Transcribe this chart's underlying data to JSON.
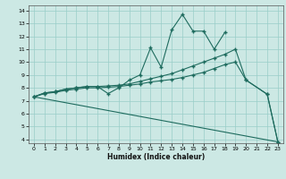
{
  "line1_x": [
    0,
    1,
    2,
    3,
    4,
    5,
    6,
    7,
    8,
    9,
    10,
    11,
    12,
    13,
    14,
    15,
    16,
    17,
    18
  ],
  "line1_y": [
    7.3,
    7.6,
    7.7,
    7.9,
    8.0,
    8.1,
    8.1,
    7.55,
    8.0,
    8.6,
    9.0,
    11.1,
    9.6,
    12.5,
    13.7,
    12.4,
    12.4,
    11.0,
    12.3
  ],
  "line2_x": [
    0,
    1,
    2,
    3,
    4,
    5,
    6,
    7,
    8,
    9,
    10,
    11,
    12,
    13,
    14,
    15,
    16,
    17,
    18,
    19,
    20,
    22,
    23
  ],
  "line2_y": [
    7.3,
    7.55,
    7.65,
    7.8,
    7.9,
    8.0,
    8.0,
    8.05,
    8.1,
    8.2,
    8.3,
    8.45,
    8.55,
    8.65,
    8.8,
    9.0,
    9.2,
    9.5,
    9.8,
    10.0,
    8.6,
    7.5,
    3.8
  ],
  "line3_x": [
    0,
    1,
    2,
    3,
    4,
    5,
    6,
    7,
    8,
    9,
    10,
    11,
    12,
    13,
    14,
    15,
    16,
    17,
    18,
    19,
    20,
    22,
    23
  ],
  "line3_y": [
    7.3,
    7.6,
    7.7,
    7.9,
    8.0,
    8.1,
    8.1,
    8.15,
    8.2,
    8.3,
    8.5,
    8.7,
    8.9,
    9.1,
    9.4,
    9.7,
    10.0,
    10.3,
    10.6,
    11.0,
    8.6,
    7.5,
    3.8
  ],
  "line4_x": [
    0,
    23
  ],
  "line4_y": [
    7.3,
    3.8
  ],
  "xlabel": "Humidex (Indice chaleur)",
  "xlim": [
    -0.5,
    23.5
  ],
  "ylim": [
    3.7,
    14.4
  ],
  "xticks": [
    0,
    1,
    2,
    3,
    4,
    5,
    6,
    7,
    8,
    9,
    10,
    11,
    12,
    13,
    14,
    15,
    16,
    17,
    18,
    19,
    20,
    21,
    22,
    23
  ],
  "yticks": [
    4,
    5,
    6,
    7,
    8,
    9,
    10,
    11,
    12,
    13,
    14
  ],
  "bg_color": "#cce8e4",
  "grid_color": "#99cdc8",
  "line_color": "#1e6b5e"
}
